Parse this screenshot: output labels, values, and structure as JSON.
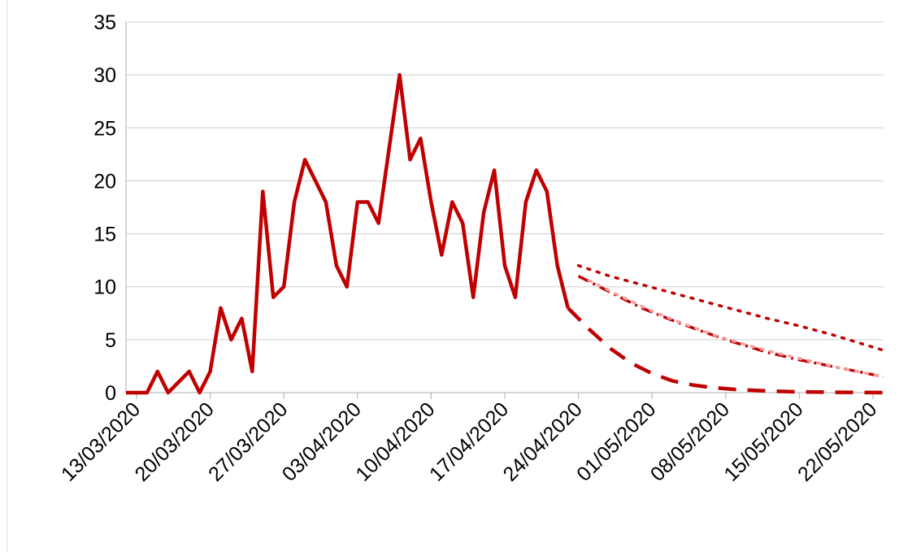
{
  "chart_data": {
    "type": "line",
    "title": "",
    "xlabel": "",
    "ylabel": "",
    "ylim": [
      0,
      35
    ],
    "yticks": [
      "0",
      "5",
      "10",
      "15",
      "20",
      "25",
      "30",
      "35"
    ],
    "x_range": [
      "12/03/2020",
      "23/05/2020"
    ],
    "xticks": [
      "13/03/2020",
      "20/03/2020",
      "27/03/2020",
      "03/04/2020",
      "10/04/2020",
      "17/04/2020",
      "24/04/2020",
      "01/05/2020",
      "08/05/2020",
      "15/05/2020",
      "22/05/2020"
    ],
    "grid": true,
    "legend": "none",
    "series": [
      {
        "style": "solid",
        "color": "#c00000",
        "points": [
          [
            "12/03/2020",
            0
          ],
          [
            "13/03/2020",
            0
          ],
          [
            "14/03/2020",
            0
          ],
          [
            "15/03/2020",
            2
          ],
          [
            "16/03/2020",
            0
          ],
          [
            "17/03/2020",
            1
          ],
          [
            "18/03/2020",
            2
          ],
          [
            "19/03/2020",
            0
          ],
          [
            "20/03/2020",
            2
          ],
          [
            "21/03/2020",
            8
          ],
          [
            "22/03/2020",
            5
          ],
          [
            "23/03/2020",
            7
          ],
          [
            "24/03/2020",
            2
          ],
          [
            "25/03/2020",
            19
          ],
          [
            "26/03/2020",
            9
          ],
          [
            "27/03/2020",
            10
          ],
          [
            "28/03/2020",
            18
          ],
          [
            "29/03/2020",
            22
          ],
          [
            "30/03/2020",
            20
          ],
          [
            "31/03/2020",
            18
          ],
          [
            "01/04/2020",
            12
          ],
          [
            "02/04/2020",
            10
          ],
          [
            "03/04/2020",
            18
          ],
          [
            "04/04/2020",
            18
          ],
          [
            "05/04/2020",
            16
          ],
          [
            "06/04/2020",
            23
          ],
          [
            "07/04/2020",
            30
          ],
          [
            "08/04/2020",
            22
          ],
          [
            "09/04/2020",
            24
          ],
          [
            "10/04/2020",
            18
          ],
          [
            "11/04/2020",
            13
          ],
          [
            "12/04/2020",
            18
          ],
          [
            "13/04/2020",
            16
          ],
          [
            "14/04/2020",
            9
          ],
          [
            "15/04/2020",
            17
          ],
          [
            "16/04/2020",
            21
          ],
          [
            "17/04/2020",
            12
          ],
          [
            "18/04/2020",
            9
          ],
          [
            "19/04/2020",
            18
          ],
          [
            "20/04/2020",
            21
          ],
          [
            "21/04/2020",
            19
          ],
          [
            "22/04/2020",
            12
          ],
          [
            "23/04/2020",
            8
          ]
        ]
      },
      {
        "style": "dashed",
        "color": "#c00000",
        "points": [
          [
            "23/04/2020",
            8
          ],
          [
            "25/04/2020",
            6
          ],
          [
            "27/04/2020",
            4.2
          ],
          [
            "29/04/2020",
            2.8
          ],
          [
            "01/05/2020",
            1.8
          ],
          [
            "03/05/2020",
            1.1
          ],
          [
            "05/05/2020",
            0.7
          ],
          [
            "07/05/2020",
            0.45
          ],
          [
            "09/05/2020",
            0.3
          ],
          [
            "11/05/2020",
            0.2
          ],
          [
            "13/05/2020",
            0.12
          ],
          [
            "15/05/2020",
            0.08
          ],
          [
            "17/05/2020",
            0.05
          ],
          [
            "19/05/2020",
            0.03
          ],
          [
            "21/05/2020",
            0.02
          ],
          [
            "23/05/2020",
            0.01
          ]
        ]
      },
      {
        "style": "dotted",
        "color": "#c00000",
        "points": [
          [
            "24/04/2020",
            12
          ],
          [
            "27/04/2020",
            11
          ],
          [
            "30/04/2020",
            10.2
          ],
          [
            "03/05/2020",
            9.4
          ],
          [
            "06/05/2020",
            8.6
          ],
          [
            "09/05/2020",
            7.8
          ],
          [
            "12/05/2020",
            7
          ],
          [
            "15/05/2020",
            6.3
          ],
          [
            "18/05/2020",
            5.5
          ],
          [
            "21/05/2020",
            4.6
          ],
          [
            "23/05/2020",
            4
          ]
        ]
      },
      {
        "style": "dash-dot",
        "color": "#c00000",
        "points": [
          [
            "24/04/2020",
            11
          ],
          [
            "27/04/2020",
            9.5
          ],
          [
            "30/04/2020",
            8
          ],
          [
            "03/05/2020",
            6.8
          ],
          [
            "06/05/2020",
            5.7
          ],
          [
            "09/05/2020",
            4.7
          ],
          [
            "12/05/2020",
            3.8
          ],
          [
            "15/05/2020",
            3.1
          ],
          [
            "18/05/2020",
            2.5
          ],
          [
            "21/05/2020",
            1.9
          ],
          [
            "23/05/2020",
            1.5
          ]
        ]
      },
      {
        "style": "dotted",
        "color": "#f4a0a0",
        "points": [
          [
            "25/04/2020",
            10.6
          ],
          [
            "28/04/2020",
            9.1
          ],
          [
            "01/05/2020",
            7.7
          ],
          [
            "04/05/2020",
            6.5
          ],
          [
            "07/05/2020",
            5.4
          ],
          [
            "10/05/2020",
            4.5
          ],
          [
            "13/05/2020",
            3.7
          ],
          [
            "16/05/2020",
            3.0
          ],
          [
            "19/05/2020",
            2.3
          ],
          [
            "22/05/2020",
            1.7
          ],
          [
            "23/05/2020",
            1.5
          ]
        ]
      }
    ]
  }
}
